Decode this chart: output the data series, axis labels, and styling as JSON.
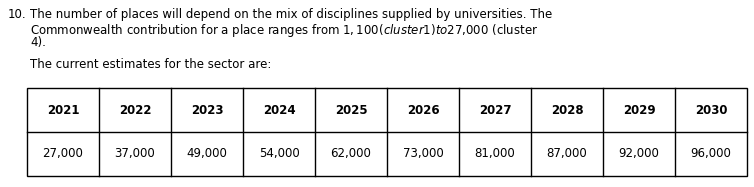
{
  "line1": "10.  The number of places will depend on the mix of disciplines supplied by universities. The",
  "line2": "      Commonwealth contribution for a place ranges from $1,100 (cluster 1) to $27,000 (cluster",
  "line3": "      4).",
  "line4": "      The current estimates for the sector are:",
  "headers": [
    "2021",
    "2022",
    "2023",
    "2024",
    "2025",
    "2026",
    "2027",
    "2028",
    "2029",
    "2030"
  ],
  "values": [
    "27,000",
    "37,000",
    "49,000",
    "54,000",
    "62,000",
    "73,000",
    "81,000",
    "87,000",
    "92,000",
    "96,000"
  ],
  "background_color": "#ffffff",
  "text_color": "#000000",
  "font_size": 8.5,
  "table_font_size": 8.5,
  "table_border_color": "#000000",
  "table_lw": 1.0,
  "num_prefix": "10.",
  "indent_prefix": "    ",
  "text_line1": "The number of places will depend on the mix of disciplines supplied by universities. The",
  "text_line2": "Commonwealth contribution for a place ranges from $1,100 (cluster 1) to $27,000 (cluster",
  "text_line3": "4).",
  "text_line4": "The current estimates for the sector are:"
}
